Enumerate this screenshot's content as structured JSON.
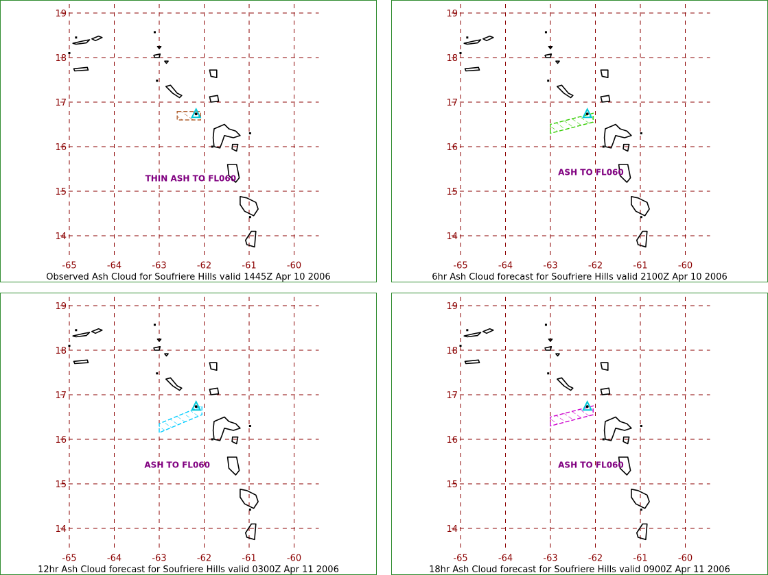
{
  "colors": {
    "grid": "#8b0000",
    "tick_label": "#8b0000",
    "coast": "#000000",
    "annotation": "#800080",
    "frame": "#2e8b2e",
    "volcano_marker": "#00c8d8"
  },
  "icons": {
    "volcano": "triangle-marker"
  },
  "grid": {
    "lon_ticks": [
      -65,
      -64,
      -63,
      -62,
      -61,
      -60
    ],
    "lat_ticks": [
      19,
      18,
      17,
      16,
      15,
      14
    ],
    "lon_labels": [
      "-65",
      "-64",
      "-63",
      "-62",
      "-61",
      "-60"
    ],
    "lat_labels": [
      "19",
      "18",
      "17",
      "16",
      "15",
      "14"
    ],
    "lon_range": [
      -65.2,
      -59.45
    ],
    "lat_range": [
      13.55,
      19.2
    ]
  },
  "volcano": {
    "lon": -62.18,
    "lat": 16.72
  },
  "panels": [
    {
      "caption": "Observed Ash Cloud for Soufriere  Hills valid 1445Z Apr 10 2006",
      "annotation": "THIN ASH TO FL060",
      "annotation_pos": {
        "lon": -62.3,
        "lat": 15.22
      },
      "ash_color": "#b06030",
      "ash_polygon": [
        [
          -62.6,
          16.79
        ],
        [
          -62.08,
          16.79
        ],
        [
          -62.08,
          16.6
        ],
        [
          -62.6,
          16.6
        ]
      ]
    },
    {
      "caption": "6hr Ash Cloud forecast for Soufriere  Hills valid 2100Z Apr 10 2006",
      "annotation": "ASH TO FL060",
      "annotation_pos": {
        "lon": -62.1,
        "lat": 15.36
      },
      "ash_color": "#33cc00",
      "ash_polygon": [
        [
          -63.0,
          16.3
        ],
        [
          -63.0,
          16.5
        ],
        [
          -62.05,
          16.75
        ],
        [
          -62.05,
          16.55
        ]
      ]
    },
    {
      "caption": "12hr Ash Cloud forecast for Soufriere  Hills valid 0300Z Apr 11 2006",
      "annotation": "ASH TO FL060",
      "annotation_pos": {
        "lon": -62.6,
        "lat": 15.36
      },
      "ash_color": "#00ccff",
      "ash_polygon": [
        [
          -63.0,
          16.15
        ],
        [
          -63.0,
          16.35
        ],
        [
          -62.05,
          16.75
        ],
        [
          -62.05,
          16.55
        ]
      ]
    },
    {
      "caption": "18hr Ash Cloud forecast for Soufriere  Hills valid 0900Z Apr 11 2006",
      "annotation": "ASH TO FL060",
      "annotation_pos": {
        "lon": -62.1,
        "lat": 15.36
      },
      "ash_color": "#cc00cc",
      "ash_polygon": [
        [
          -63.0,
          16.3
        ],
        [
          -63.0,
          16.5
        ],
        [
          -62.05,
          16.75
        ],
        [
          -62.05,
          16.55
        ]
      ]
    }
  ],
  "islands": [
    [
      [
        -64.92,
        18.32
      ],
      [
        -64.7,
        18.37
      ],
      [
        -64.55,
        18.4
      ],
      [
        -64.62,
        18.33
      ],
      [
        -64.85,
        18.3
      ]
    ],
    [
      [
        -64.5,
        18.42
      ],
      [
        -64.35,
        18.48
      ],
      [
        -64.27,
        18.45
      ],
      [
        -64.42,
        18.38
      ]
    ],
    [
      [
        -64.9,
        17.75
      ],
      [
        -64.6,
        17.78
      ],
      [
        -64.58,
        17.72
      ],
      [
        -64.88,
        17.7
      ]
    ],
    [
      [
        -63.12,
        18.05
      ],
      [
        -62.98,
        18.08
      ],
      [
        -63.0,
        18.0
      ],
      [
        -63.1,
        18.0
      ]
    ],
    [
      [
        -63.04,
        18.25
      ],
      [
        -62.96,
        18.25
      ],
      [
        -63.0,
        18.2
      ]
    ],
    [
      [
        -62.88,
        17.92
      ],
      [
        -62.8,
        17.92
      ],
      [
        -62.84,
        17.87
      ]
    ],
    [
      [
        -62.85,
        17.35
      ],
      [
        -62.75,
        17.38
      ],
      [
        -62.6,
        17.2
      ],
      [
        -62.5,
        17.15
      ],
      [
        -62.55,
        17.1
      ],
      [
        -62.7,
        17.2
      ]
    ],
    [
      [
        -61.88,
        17.72
      ],
      [
        -61.72,
        17.72
      ],
      [
        -61.72,
        17.55
      ],
      [
        -61.85,
        17.58
      ]
    ],
    [
      [
        -61.88,
        17.12
      ],
      [
        -61.7,
        17.15
      ],
      [
        -61.68,
        17.02
      ],
      [
        -61.85,
        17.0
      ]
    ],
    [
      [
        -61.78,
        16.4
      ],
      [
        -61.55,
        16.5
      ],
      [
        -61.45,
        16.4
      ],
      [
        -61.3,
        16.35
      ],
      [
        -61.2,
        16.25
      ],
      [
        -61.35,
        16.2
      ],
      [
        -61.55,
        16.25
      ],
      [
        -61.6,
        16.1
      ],
      [
        -61.65,
        15.97
      ],
      [
        -61.78,
        16.0
      ],
      [
        -61.8,
        16.2
      ]
    ],
    [
      [
        -61.37,
        16.05
      ],
      [
        -61.25,
        16.05
      ],
      [
        -61.28,
        15.9
      ],
      [
        -61.38,
        15.95
      ]
    ],
    [
      [
        -61.48,
        15.6
      ],
      [
        -61.28,
        15.6
      ],
      [
        -61.22,
        15.3
      ],
      [
        -61.3,
        15.2
      ],
      [
        -61.45,
        15.35
      ]
    ],
    [
      [
        -61.2,
        14.88
      ],
      [
        -61.05,
        14.85
      ],
      [
        -60.85,
        14.75
      ],
      [
        -60.8,
        14.6
      ],
      [
        -60.9,
        14.45
      ],
      [
        -61.1,
        14.55
      ],
      [
        -61.2,
        14.7
      ]
    ],
    [
      [
        -60.95,
        14.1
      ],
      [
        -60.85,
        14.1
      ],
      [
        -60.88,
        13.75
      ],
      [
        -61.05,
        13.8
      ],
      [
        -61.08,
        13.9
      ]
    ]
  ],
  "islets": [
    {
      "lon": -63.1,
      "lat": 18.57
    },
    {
      "lon": -64.85,
      "lat": 18.45
    },
    {
      "lon": -63.05,
      "lat": 17.48
    },
    {
      "lon": -61.82,
      "lat": 16.0
    },
    {
      "lon": -60.98,
      "lat": 16.3
    },
    {
      "lon": -60.98,
      "lat": 14.42
    },
    {
      "lon": -65.0,
      "lat": 18.1
    }
  ]
}
